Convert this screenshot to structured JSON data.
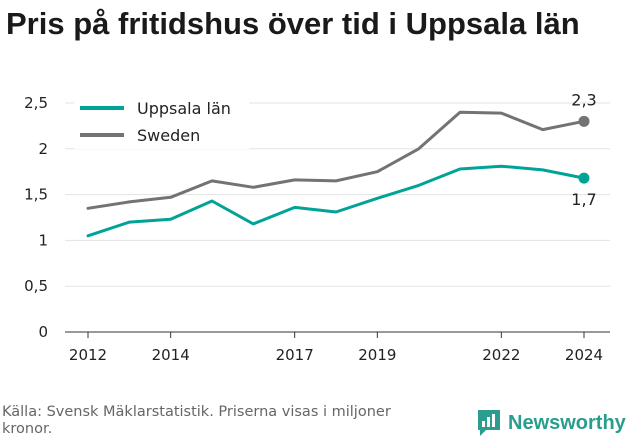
{
  "title": "Pris på fritidshus över tid i Uppsala län",
  "footer": {
    "source": "Källa: Svensk Mäklarstatistik. Priserna visas i miljoner kronor.",
    "brand": "Newsworthy",
    "brand_icon": "newsworthy-logo-icon",
    "brand_color": "#2a9d8f"
  },
  "chart_data": {
    "type": "line",
    "title": "Pris på fritidshus över tid i Uppsala län",
    "xlabel": "",
    "ylabel": "",
    "ylim": [
      0,
      2.5
    ],
    "xlim": [
      2012,
      2024
    ],
    "grid": "horizontal",
    "legend_position": "top-left",
    "x_ticks": [
      2012,
      2014,
      2017,
      2019,
      2022,
      2024
    ],
    "x_tick_labels": [
      "2012",
      "2014",
      "2017",
      "2019",
      "2022",
      "2024"
    ],
    "y_ticks": [
      0,
      0.5,
      1,
      1.5,
      2,
      2.5
    ],
    "y_tick_labels": [
      "0",
      "0,5",
      "1",
      "1,5",
      "2",
      "2,5"
    ],
    "x": [
      2012,
      2013,
      2014,
      2015,
      2016,
      2017,
      2018,
      2019,
      2020,
      2021,
      2022,
      2023,
      2024
    ],
    "series": [
      {
        "name": "Uppsala län",
        "color": "#00a396",
        "values": [
          1.05,
          1.2,
          1.23,
          1.43,
          1.18,
          1.36,
          1.31,
          1.46,
          1.6,
          1.78,
          1.81,
          1.77,
          1.68
        ],
        "end_label": "1,7"
      },
      {
        "name": "Sweden",
        "color": "#737373",
        "values": [
          1.35,
          1.42,
          1.47,
          1.65,
          1.58,
          1.66,
          1.65,
          1.75,
          2.0,
          2.4,
          2.39,
          2.21,
          2.3
        ],
        "end_label": "2,3"
      }
    ]
  }
}
